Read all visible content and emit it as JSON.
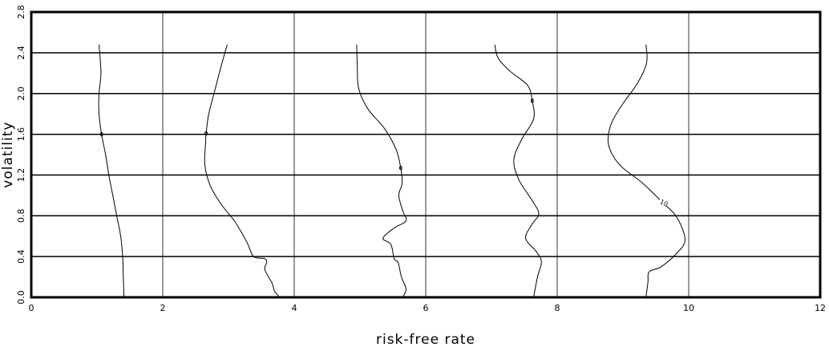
{
  "chart_data": {
    "type": "line",
    "title": "",
    "xlabel": "risk-free rate",
    "ylabel": "volatility",
    "xlim": [
      0,
      12
    ],
    "ylim": [
      0,
      2.8
    ],
    "xticks": [
      0,
      2,
      4,
      6,
      8,
      10,
      12
    ],
    "yticks": [
      0.0,
      0.4,
      0.8,
      1.2,
      1.6,
      2.0,
      2.4,
      2.8
    ],
    "xtick_labels": [
      "0",
      "2",
      "4",
      "6",
      "8",
      "10",
      "12"
    ],
    "ytick_labels": [
      "0.0",
      "0.4",
      "0.8",
      "1.2",
      "1.6",
      "2.0",
      "2.4",
      "2.8"
    ],
    "grid": true,
    "series": [
      {
        "contour_label": "",
        "label_at": [
          1.07,
          1.6
        ],
        "points": [
          [
            1.41,
            0.0
          ],
          [
            1.4,
            0.2
          ],
          [
            1.39,
            0.4
          ],
          [
            1.36,
            0.6
          ],
          [
            1.3,
            0.8
          ],
          [
            1.24,
            1.0
          ],
          [
            1.18,
            1.2
          ],
          [
            1.13,
            1.4
          ],
          [
            1.07,
            1.6
          ],
          [
            1.03,
            1.8
          ],
          [
            1.03,
            2.0
          ],
          [
            1.06,
            2.2
          ],
          [
            1.03,
            2.48
          ]
        ]
      },
      {
        "contour_label": "",
        "label_at": [
          2.66,
          1.61
        ],
        "points": [
          [
            3.78,
            0.0
          ],
          [
            3.7,
            0.06
          ],
          [
            3.67,
            0.13
          ],
          [
            3.61,
            0.2
          ],
          [
            3.55,
            0.28
          ],
          [
            3.58,
            0.34
          ],
          [
            3.55,
            0.38
          ],
          [
            3.38,
            0.4
          ],
          [
            3.28,
            0.54
          ],
          [
            3.1,
            0.74
          ],
          [
            2.88,
            0.92
          ],
          [
            2.72,
            1.1
          ],
          [
            2.64,
            1.3
          ],
          [
            2.65,
            1.5
          ],
          [
            2.66,
            1.61
          ],
          [
            2.7,
            1.8
          ],
          [
            2.8,
            2.05
          ],
          [
            2.88,
            2.25
          ],
          [
            2.98,
            2.48
          ]
        ]
      },
      {
        "contour_label": "",
        "label_at": [
          5.62,
          1.27
        ],
        "points": [
          [
            5.65,
            0.0
          ],
          [
            5.7,
            0.08
          ],
          [
            5.63,
            0.2
          ],
          [
            5.58,
            0.34
          ],
          [
            5.52,
            0.38
          ],
          [
            5.47,
            0.52
          ],
          [
            5.35,
            0.58
          ],
          [
            5.52,
            0.68
          ],
          [
            5.7,
            0.75
          ],
          [
            5.65,
            0.85
          ],
          [
            5.59,
            1.0
          ],
          [
            5.64,
            1.12
          ],
          [
            5.62,
            1.27
          ],
          [
            5.55,
            1.45
          ],
          [
            5.38,
            1.65
          ],
          [
            5.12,
            1.85
          ],
          [
            4.98,
            2.05
          ],
          [
            4.96,
            2.25
          ],
          [
            4.95,
            2.48
          ]
        ]
      },
      {
        "contour_label": "",
        "label_at": [
          7.62,
          1.93
        ],
        "points": [
          [
            7.64,
            0.0
          ],
          [
            7.7,
            0.2
          ],
          [
            7.76,
            0.35
          ],
          [
            7.68,
            0.45
          ],
          [
            7.52,
            0.58
          ],
          [
            7.62,
            0.72
          ],
          [
            7.72,
            0.82
          ],
          [
            7.62,
            0.95
          ],
          [
            7.42,
            1.15
          ],
          [
            7.34,
            1.35
          ],
          [
            7.46,
            1.55
          ],
          [
            7.64,
            1.75
          ],
          [
            7.62,
            1.93
          ],
          [
            7.55,
            2.08
          ],
          [
            7.28,
            2.22
          ],
          [
            7.1,
            2.35
          ],
          [
            7.05,
            2.48
          ]
        ]
      },
      {
        "contour_label": "10",
        "label_at": [
          9.62,
          0.92
        ],
        "points": [
          [
            9.35,
            0.0
          ],
          [
            9.38,
            0.15
          ],
          [
            9.4,
            0.25
          ],
          [
            9.58,
            0.3
          ],
          [
            9.8,
            0.42
          ],
          [
            9.94,
            0.54
          ],
          [
            9.9,
            0.68
          ],
          [
            9.78,
            0.82
          ],
          [
            9.62,
            0.92
          ],
          [
            9.3,
            1.12
          ],
          [
            8.95,
            1.3
          ],
          [
            8.78,
            1.5
          ],
          [
            8.82,
            1.7
          ],
          [
            9.0,
            1.9
          ],
          [
            9.22,
            2.1
          ],
          [
            9.36,
            2.3
          ],
          [
            9.35,
            2.48
          ]
        ]
      }
    ]
  }
}
